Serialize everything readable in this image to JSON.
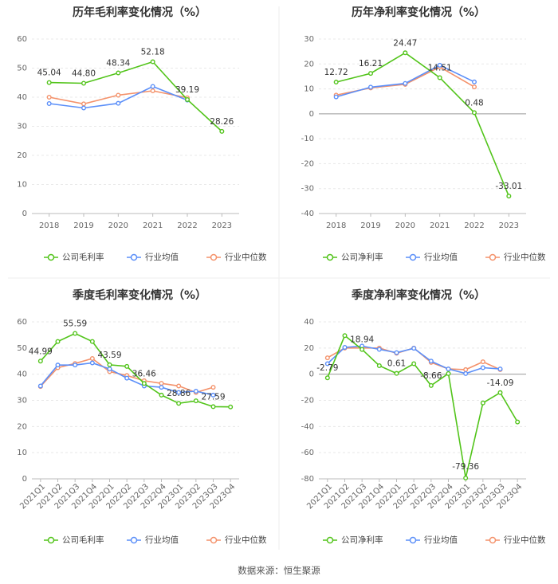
{
  "colors": {
    "company": "#52c41a",
    "industry_avg": "#5b8ff9",
    "industry_median": "#f4926b"
  },
  "legend": {
    "gross_company": "公司毛利率",
    "net_company": "公司净利率",
    "avg": "行业均值",
    "median": "行业中位数"
  },
  "source": "数据来源：恒生聚源",
  "chart_data": [
    {
      "type": "line",
      "title": "历年毛利率变化情况（%）",
      "categories": [
        "2018",
        "2019",
        "2020",
        "2021",
        "2022",
        "2023"
      ],
      "ylim": [
        0,
        60
      ],
      "yticks": [
        0,
        10,
        20,
        30,
        40,
        50,
        60
      ],
      "series": [
        {
          "name": "公司毛利率",
          "values": [
            45.04,
            44.8,
            48.34,
            52.18,
            39.19,
            28.26
          ]
        },
        {
          "name": "行业均值",
          "values": [
            37.8,
            36.3,
            37.9,
            43.7,
            39.0,
            null
          ]
        },
        {
          "name": "行业中位数",
          "values": [
            40.0,
            37.7,
            40.7,
            42.2,
            39.8,
            null
          ]
        }
      ],
      "data_labels": [
        "45.04",
        "44.80",
        "48.34",
        "52.18",
        "39.19",
        "28.26"
      ],
      "label_idx": [
        0,
        1,
        2,
        3,
        4,
        5
      ]
    },
    {
      "type": "line",
      "title": "历年净利率变化情况（%）",
      "categories": [
        "2018",
        "2019",
        "2020",
        "2021",
        "2022",
        "2023"
      ],
      "ylim": [
        -40,
        30
      ],
      "yticks": [
        -40,
        -30,
        -20,
        -10,
        0,
        10,
        20,
        30
      ],
      "series": [
        {
          "name": "公司净利率",
          "values": [
            12.72,
            16.21,
            24.47,
            14.51,
            0.48,
            -33.01
          ]
        },
        {
          "name": "行业均值",
          "values": [
            6.8,
            10.7,
            12.2,
            19.5,
            12.8,
            null
          ]
        },
        {
          "name": "行业中位数",
          "values": [
            7.5,
            10.4,
            11.8,
            18.8,
            10.8,
            null
          ]
        }
      ],
      "data_labels": [
        "12.72",
        "16.21",
        "24.47",
        "14.51",
        "0.48",
        "-33.01"
      ],
      "label_idx": [
        0,
        1,
        2,
        3,
        4,
        5
      ]
    },
    {
      "type": "line",
      "title": "季度毛利率变化情况（%）",
      "categories": [
        "2021Q1",
        "2021Q2",
        "2021Q3",
        "2021Q4",
        "2022Q1",
        "2022Q2",
        "2022Q3",
        "2022Q4",
        "2023Q1",
        "2023Q2",
        "2023Q3",
        "2023Q4"
      ],
      "ylim": [
        0,
        60
      ],
      "yticks": [
        0,
        10,
        20,
        30,
        40,
        50,
        60
      ],
      "series": [
        {
          "name": "公司毛利率",
          "values": [
            44.99,
            52.5,
            55.59,
            52.5,
            43.59,
            43.0,
            36.46,
            32.0,
            28.86,
            29.8,
            27.59,
            27.5
          ]
        },
        {
          "name": "行业均值",
          "values": [
            35.5,
            43.5,
            43.5,
            44.3,
            42.0,
            38.5,
            35.5,
            35.0,
            33.0,
            33.5,
            32.0,
            null
          ]
        },
        {
          "name": "行业中位数",
          "values": [
            35.3,
            42.5,
            44.1,
            46.0,
            41.0,
            39.5,
            37.5,
            36.5,
            35.5,
            33.0,
            35.0,
            null
          ]
        }
      ],
      "data_labels": [
        "44.99",
        "55.59",
        "43.59",
        "36.46",
        "28.86",
        "27.59"
      ],
      "label_idx": [
        0,
        2,
        4,
        6,
        8,
        10
      ]
    },
    {
      "type": "line",
      "title": "季度净利率变化情况（%）",
      "categories": [
        "2021Q1",
        "2021Q2",
        "2021Q3",
        "2021Q4",
        "2022Q1",
        "2022Q2",
        "2022Q3",
        "2022Q4",
        "2023Q1",
        "2023Q2",
        "2023Q3",
        "2023Q4"
      ],
      "ylim": [
        -80,
        40
      ],
      "yticks": [
        -80,
        -60,
        -40,
        -20,
        0,
        20,
        40
      ],
      "series": [
        {
          "name": "公司净利率",
          "values": [
            -2.79,
            29.5,
            18.94,
            6.5,
            0.61,
            8.0,
            -8.66,
            0.5,
            -79.36,
            -22.0,
            -14.09,
            -36.5
          ]
        },
        {
          "name": "行业均值",
          "values": [
            8.0,
            20.5,
            21.5,
            19.0,
            16.5,
            19.8,
            10.0,
            4.0,
            0.5,
            5.0,
            4.0,
            null
          ]
        },
        {
          "name": "行业中位数",
          "values": [
            12.5,
            20.0,
            20.0,
            20.0,
            16.0,
            20.0,
            9.0,
            4.0,
            3.5,
            9.5,
            3.5,
            null
          ]
        }
      ],
      "data_labels": [
        "-2.79",
        "18.94",
        "0.61",
        "-8.66",
        "-79.36",
        "-14.09"
      ],
      "label_idx": [
        0,
        2,
        4,
        6,
        8,
        10
      ]
    }
  ]
}
